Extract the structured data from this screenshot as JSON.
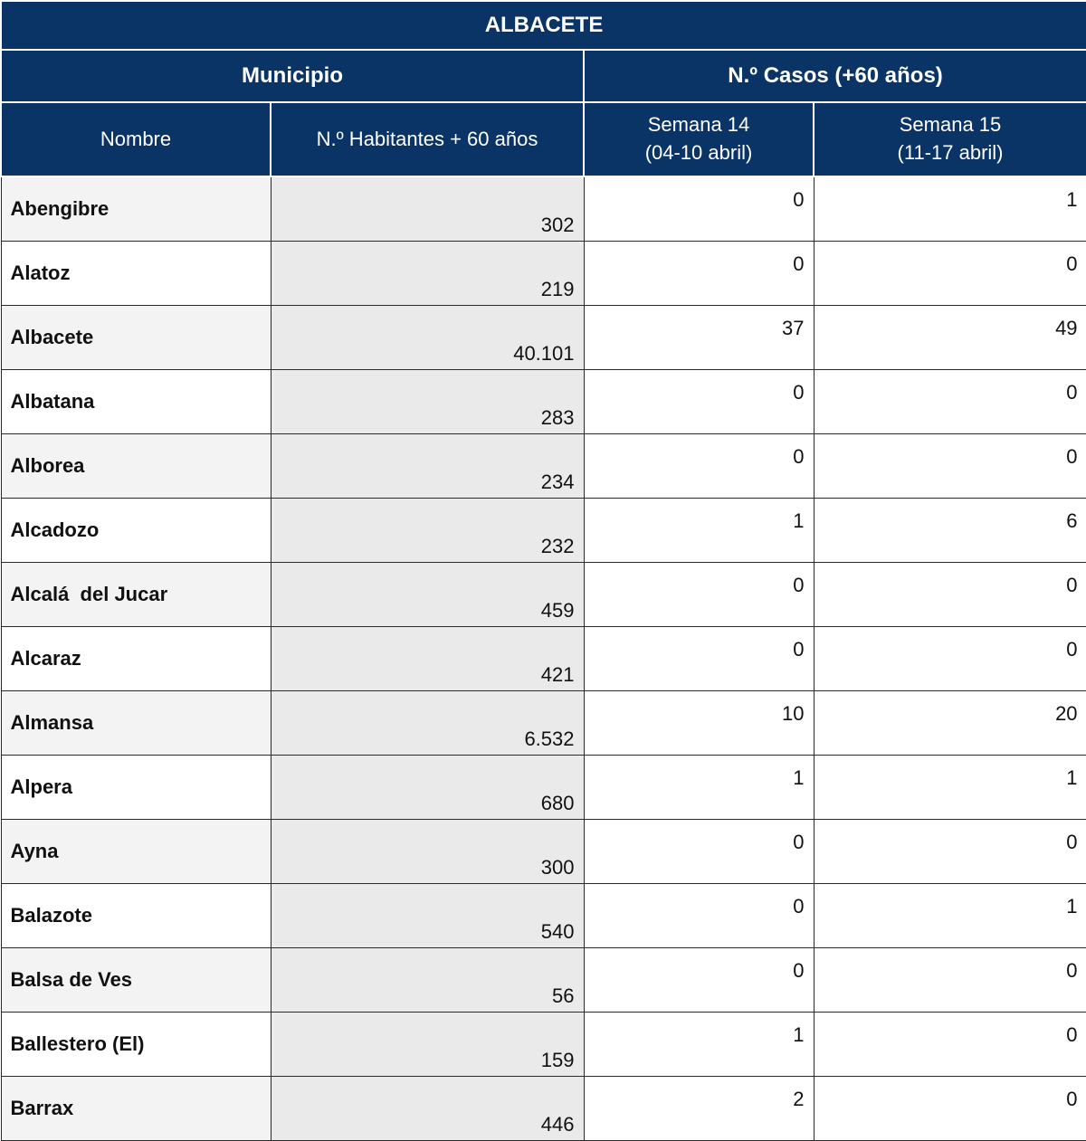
{
  "table": {
    "title": "ALBACETE",
    "group_headers": {
      "municipio": "Municipio",
      "casos": "N.º Casos (+60 años)"
    },
    "columns": {
      "nombre": "Nombre",
      "habitantes": "N.º Habitantes + 60 años",
      "semana14_line1": "Semana 14",
      "semana14_line2": "(04-10 abril)",
      "semana15_line1": "Semana 15",
      "semana15_line2": "(11-17 abril)"
    },
    "rows": [
      {
        "nombre": "Abengibre",
        "habitantes": "302",
        "semana14": "0",
        "semana15": "1"
      },
      {
        "nombre": "Alatoz",
        "habitantes": "219",
        "semana14": "0",
        "semana15": "0"
      },
      {
        "nombre": "Albacete",
        "habitantes": "40.101",
        "semana14": "37",
        "semana15": "49"
      },
      {
        "nombre": "Albatana",
        "habitantes": "283",
        "semana14": "0",
        "semana15": "0"
      },
      {
        "nombre": "Alborea",
        "habitantes": "234",
        "semana14": "0",
        "semana15": "0"
      },
      {
        "nombre": "Alcadozo",
        "habitantes": "232",
        "semana14": "1",
        "semana15": "6"
      },
      {
        "nombre": "Alcalá  del Jucar",
        "habitantes": "459",
        "semana14": "0",
        "semana15": "0"
      },
      {
        "nombre": "Alcaraz",
        "habitantes": "421",
        "semana14": "0",
        "semana15": "0"
      },
      {
        "nombre": "Almansa",
        "habitantes": "6.532",
        "semana14": "10",
        "semana15": "20"
      },
      {
        "nombre": "Alpera",
        "habitantes": "680",
        "semana14": "1",
        "semana15": "1"
      },
      {
        "nombre": "Ayna",
        "habitantes": "300",
        "semana14": "0",
        "semana15": "0"
      },
      {
        "nombre": "Balazote",
        "habitantes": "540",
        "semana14": "0",
        "semana15": "1"
      },
      {
        "nombre": "Balsa de Ves",
        "habitantes": "56",
        "semana14": "0",
        "semana15": "0"
      },
      {
        "nombre": "Ballestero (El)",
        "habitantes": "159",
        "semana14": "1",
        "semana15": "0"
      },
      {
        "nombre": "Barrax",
        "habitantes": "446",
        "semana14": "2",
        "semana15": "0"
      }
    ]
  },
  "colors": {
    "header_bg": "#0b3466",
    "header_text": "#ffffff",
    "habitantes_bg": "#eaeaea"
  }
}
